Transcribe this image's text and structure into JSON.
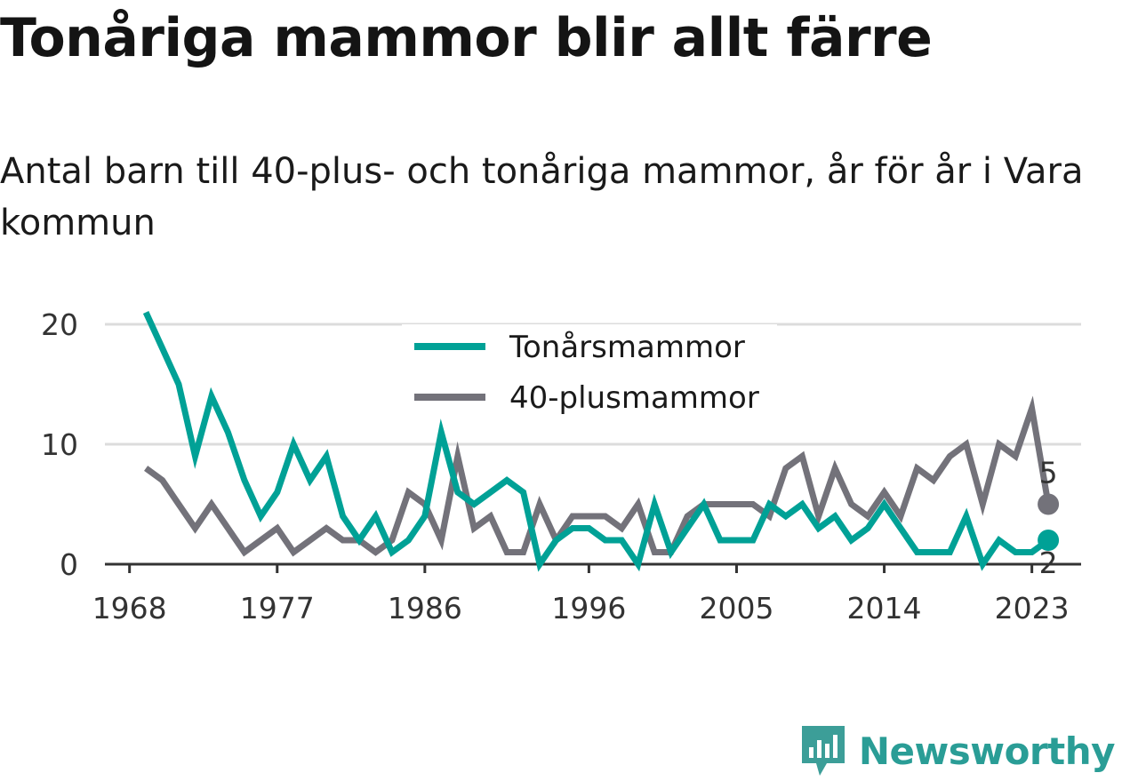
{
  "header": {
    "title": "Tonåriga mammor blir allt färre",
    "subtitle": "Antal barn till 40-plus- och tonåriga mammor, år för år i Vara kommun"
  },
  "brand": {
    "name": "Newsworthy"
  },
  "colors": {
    "teal": "#00a196",
    "grey": "#73727a",
    "grid": "#dcdcdc",
    "axis": "#333333"
  },
  "chart_data": {
    "type": "line",
    "x_ticks": [
      "1968",
      "1977",
      "1986",
      "1996",
      "2005",
      "2014",
      "2023"
    ],
    "y_ticks": [
      "0",
      "10",
      "20"
    ],
    "ylim": [
      0,
      22
    ],
    "xlim": [
      1966.5,
      2026
    ],
    "grid": true,
    "legend": "top-center",
    "x": [
      1969,
      1970,
      1971,
      1972,
      1973,
      1974,
      1975,
      1976,
      1977,
      1978,
      1979,
      1980,
      1981,
      1982,
      1983,
      1984,
      1985,
      1986,
      1987,
      1988,
      1989,
      1990,
      1991,
      1992,
      1993,
      1994,
      1995,
      1996,
      1997,
      1998,
      1999,
      2000,
      2001,
      2002,
      2003,
      2004,
      2005,
      2006,
      2007,
      2008,
      2009,
      2010,
      2011,
      2012,
      2013,
      2014,
      2015,
      2016,
      2017,
      2018,
      2019,
      2020,
      2021,
      2022,
      2023,
      2024
    ],
    "series": [
      {
        "name": "Tonårsmammor",
        "color": "#00a196",
        "values": [
          21,
          18,
          15,
          9,
          14,
          11,
          7,
          4,
          6,
          10,
          7,
          9,
          4,
          2,
          4,
          1,
          2,
          4,
          11,
          6,
          5,
          6,
          7,
          6,
          0,
          2,
          3,
          3,
          2,
          2,
          0,
          5,
          1,
          3,
          5,
          2,
          2,
          2,
          5,
          4,
          5,
          3,
          4,
          2,
          3,
          5,
          3,
          1,
          1,
          1,
          4,
          0,
          2,
          1,
          1,
          2
        ],
        "end_label": "2"
      },
      {
        "name": "40-plusmammor",
        "color": "#73727a",
        "values": [
          8,
          7,
          5,
          3,
          5,
          3,
          1,
          2,
          3,
          1,
          2,
          3,
          2,
          2,
          1,
          2,
          6,
          5,
          2,
          9,
          3,
          4,
          1,
          1,
          5,
          2,
          4,
          4,
          4,
          3,
          5,
          1,
          1,
          4,
          5,
          5,
          5,
          5,
          4,
          8,
          9,
          4,
          8,
          5,
          4,
          6,
          4,
          8,
          7,
          9,
          10,
          5,
          10,
          9,
          13,
          5
        ],
        "end_label": "5"
      }
    ]
  }
}
